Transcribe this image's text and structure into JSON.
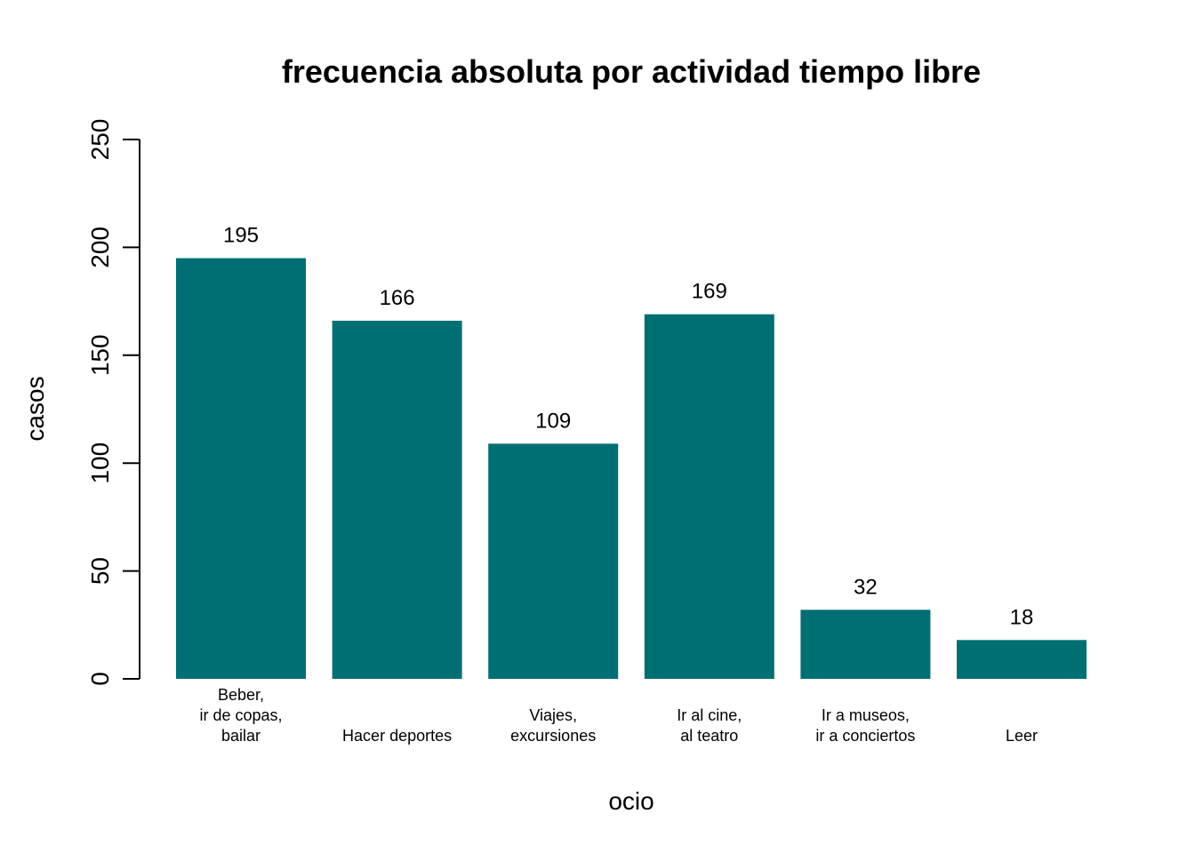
{
  "chart_data": {
    "type": "bar",
    "title": "frecuencia absoluta por actividad tiempo libre",
    "xlabel": "ocio",
    "ylabel": "casos",
    "ylim": [
      0,
      250
    ],
    "yticks": [
      0,
      50,
      100,
      150,
      200,
      250
    ],
    "grid": false,
    "bar_color": "#006f74",
    "categories": [
      [
        "Beber,",
        "ir de copas,",
        "bailar"
      ],
      [
        "Hacer deportes"
      ],
      [
        "Viajes,",
        "excursiones"
      ],
      [
        "Ir al cine,",
        "al teatro"
      ],
      [
        "Ir a museos,",
        "ir a conciertos"
      ],
      [
        "Leer"
      ]
    ],
    "values": [
      195,
      166,
      109,
      169,
      32,
      18
    ],
    "data_labels": [
      "195",
      "166",
      "109",
      "169",
      "32",
      "18"
    ]
  }
}
